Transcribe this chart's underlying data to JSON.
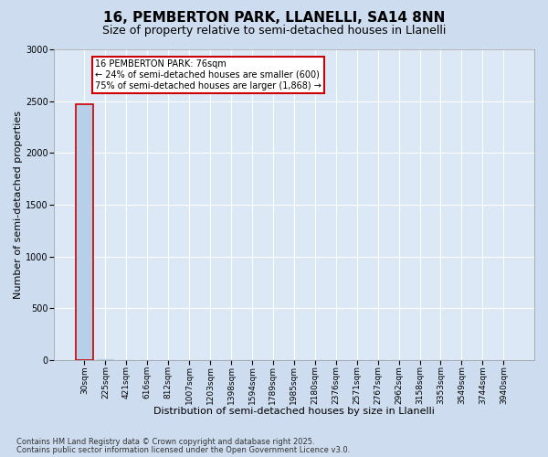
{
  "title1": "16, PEMBERTON PARK, LLANELLI, SA14 8NN",
  "title2": "Size of property relative to semi-detached houses in Llanelli",
  "xlabel": "Distribution of semi-detached houses by size in Llanelli",
  "ylabel": "Number of semi-detached properties",
  "categories": [
    "30sqm",
    "225sqm",
    "421sqm",
    "616sqm",
    "812sqm",
    "1007sqm",
    "1203sqm",
    "1398sqm",
    "1594sqm",
    "1789sqm",
    "1985sqm",
    "2180sqm",
    "2376sqm",
    "2571sqm",
    "2767sqm",
    "2962sqm",
    "3158sqm",
    "3353sqm",
    "3549sqm",
    "3744sqm",
    "3940sqm"
  ],
  "values": [
    2468,
    4,
    2,
    1,
    1,
    0,
    0,
    0,
    0,
    0,
    0,
    0,
    0,
    0,
    0,
    0,
    0,
    0,
    0,
    0,
    0
  ],
  "bar_color": "#b8cfe8",
  "bar_edge_color": "#b8cfe8",
  "highlight_bar_edge": "#cc0000",
  "ylim": [
    0,
    3000
  ],
  "yticks": [
    0,
    500,
    1000,
    1500,
    2000,
    2500,
    3000
  ],
  "annotation_title": "16 PEMBERTON PARK: 76sqm",
  "annotation_line2": "← 24% of semi-detached houses are smaller (600)",
  "annotation_line3": "75% of semi-detached houses are larger (1,868) →",
  "annotation_box_color": "#cc0000",
  "annotation_fill": "#ffffff",
  "footer1": "Contains HM Land Registry data © Crown copyright and database right 2025.",
  "footer2": "Contains public sector information licensed under the Open Government Licence v3.0.",
  "bg_color": "#cddcee",
  "plot_bg": "#dce8f5",
  "grid_color": "#ffffff",
  "title_fontsize": 11,
  "subtitle_fontsize": 9,
  "tick_fontsize": 6.5,
  "axis_label_fontsize": 8,
  "annotation_fontsize": 7,
  "footer_fontsize": 6
}
